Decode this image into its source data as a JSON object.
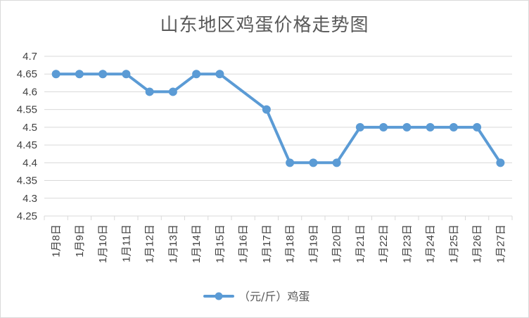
{
  "chart_data": {
    "type": "line",
    "title": "山东地区鸡蛋价格走势图",
    "categories": [
      "1月8日",
      "1月9日",
      "1月10日",
      "1月11日",
      "1月12日",
      "1月13日",
      "1月14日",
      "1月15日",
      "1月16日",
      "1月17日",
      "1月18日",
      "1月19日",
      "1月20日",
      "1月21日",
      "1月22日",
      "1月23日",
      "1月24日",
      "1月25日",
      "1月26日",
      "1月27日"
    ],
    "series": [
      {
        "name": "（元/斤）鸡蛋",
        "color": "#5b9bd5",
        "values": [
          4.65,
          4.65,
          4.65,
          4.65,
          4.6,
          4.6,
          4.65,
          4.65,
          null,
          4.55,
          4.4,
          4.4,
          4.4,
          4.5,
          4.5,
          4.5,
          4.5,
          4.5,
          4.5,
          4.4
        ]
      }
    ],
    "ylim": [
      4.25,
      4.7
    ],
    "yticks": [
      "4.25",
      "4.3",
      "4.35",
      "4.4",
      "4.45",
      "4.5",
      "4.55",
      "4.6",
      "4.65",
      "4.7"
    ],
    "grid": true,
    "legend_position": "bottom",
    "gap_handling": "connect"
  }
}
